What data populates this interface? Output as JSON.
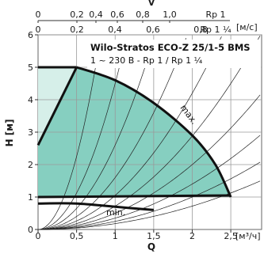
{
  "chart_data": {
    "type": "area",
    "title": "Wilo-Stratos ECO-Z 25/1-5 BMS",
    "subtitle": "1 ~ 230 B - Rp 1 / Rp 1 ¼",
    "xlabel": "Q",
    "xunit": "[м³/ч]",
    "ylabel": "H [м]",
    "top_axis_label": "v",
    "top_axis_unit": "[м/с]",
    "x_ticks": [
      "0",
      "0,5",
      "1",
      "1,5",
      "2",
      "2,5"
    ],
    "y_ticks": [
      "0",
      "1",
      "2",
      "3",
      "4",
      "5",
      "6"
    ],
    "top_row1_ticks": [
      "0",
      "0,2",
      "0,4",
      "0,6",
      "0,8",
      "1,0",
      "Rp 1"
    ],
    "top_row2_ticks": [
      "0",
      "0,2",
      "0,4",
      "0,6",
      "0,8",
      "Rp 1 ¼"
    ],
    "xlim": [
      0,
      2.9
    ],
    "ylim": [
      0,
      6
    ],
    "labels": {
      "max": "max.",
      "min": "min."
    },
    "series": [
      {
        "name": "max.",
        "x": [
          0.0,
          0.5,
          1.0,
          1.5,
          2.0,
          2.3,
          2.5
        ],
        "y": [
          5.0,
          5.0,
          4.6,
          3.9,
          2.9,
          2.0,
          1.0
        ]
      },
      {
        "name": "min.",
        "x": [
          0.0,
          0.5,
          1.0,
          1.5
        ],
        "y": [
          0.8,
          0.8,
          0.7,
          0.6
        ]
      }
    ],
    "lower_limit": {
      "x": [
        0.0,
        2.5
      ],
      "y": [
        1.0,
        1.05
      ]
    },
    "left_limit": {
      "x": [
        0.0,
        0.5
      ],
      "y": [
        2.6,
        5.0
      ]
    },
    "operating_area": {
      "x": [
        0.0,
        0.5,
        1.0,
        1.5,
        2.0,
        2.3,
        2.5,
        0.0
      ],
      "y": [
        2.6,
        5.0,
        4.6,
        3.9,
        2.9,
        2.0,
        1.0,
        1.0
      ]
    },
    "light_area": {
      "x": [
        0.0,
        0.5,
        0.0
      ],
      "y": [
        2.6,
        5.0,
        5.0
      ]
    },
    "colors": {
      "operating_area": "#86cfc0",
      "light_area": "#d6efe9",
      "curves": "#111111",
      "grid": "#9a9a9a"
    }
  }
}
